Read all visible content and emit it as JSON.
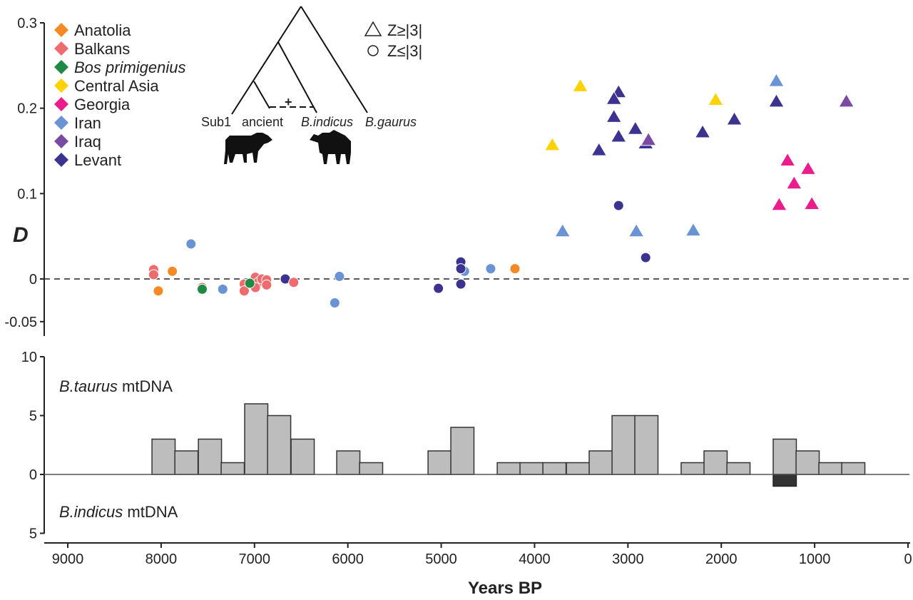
{
  "chart_data": [
    {
      "type": "scatter",
      "title": "",
      "xlabel": "Years BP",
      "ylabel": "D",
      "xlim": [
        9400,
        0
      ],
      "ylim": [
        -0.05,
        0.3
      ],
      "y_ticks": [
        {
          "value": 0.3,
          "label": "0.3"
        },
        {
          "value": 0.2,
          "label": "0.2"
        },
        {
          "value": 0.1,
          "label": "0.1"
        },
        {
          "value": 0,
          "label": "0"
        },
        {
          "value": -0.05,
          "label": "-0.05"
        }
      ],
      "reference_line": {
        "y": 0,
        "style": "dashed"
      },
      "legend": {
        "placement": "top-left",
        "groups": [
          {
            "name": "Anatolia",
            "color": "#f58a24",
            "italic": false
          },
          {
            "name": "Balkans",
            "color": "#ee6b6e",
            "italic": false
          },
          {
            "name": "Bos primigenius",
            "color": "#1e8a44",
            "italic": true
          },
          {
            "name": "Central Asia",
            "color": "#fcd200",
            "italic": false
          },
          {
            "name": "Georgia",
            "color": "#e91e8c",
            "italic": false
          },
          {
            "name": "Iran",
            "color": "#6a93d4",
            "italic": false
          },
          {
            "name": "Iraq",
            "color": "#7b4aa2",
            "italic": false
          },
          {
            "name": "Levant",
            "color": "#3c3390",
            "italic": false
          }
        ]
      },
      "shape_legend": {
        "placement": "top-center",
        "items": [
          {
            "shape": "triangle",
            "label": "Z≥|3|"
          },
          {
            "shape": "circle",
            "label": "Z≤|3|"
          }
        ]
      },
      "tree_inset": {
        "tips": [
          {
            "label": "Sub1",
            "italic": false
          },
          {
            "label": "ancient",
            "italic": false
          },
          {
            "label": "B.indicus",
            "italic": true
          },
          {
            "label": "B.gaurus",
            "italic": true
          }
        ],
        "gene_flow_label": "+",
        "silhouettes": [
          "taurine-cow",
          "zebu-cow"
        ]
      },
      "points": [
        {
          "group": "Balkans",
          "x": 8080,
          "y": 0.011,
          "shape": "circle"
        },
        {
          "group": "Balkans",
          "x": 8080,
          "y": 0.005,
          "shape": "circle"
        },
        {
          "group": "Anatolia",
          "x": 7880,
          "y": 0.009,
          "shape": "circle"
        },
        {
          "group": "Anatolia",
          "x": 8030,
          "y": -0.014,
          "shape": "circle"
        },
        {
          "group": "Iran",
          "x": 7680,
          "y": 0.041,
          "shape": "circle"
        },
        {
          "group": "Balkans",
          "x": 7560,
          "y": -0.01,
          "shape": "circle"
        },
        {
          "group": "Bos primigenius",
          "x": 7560,
          "y": -0.012,
          "shape": "circle"
        },
        {
          "group": "Iran",
          "x": 7340,
          "y": -0.012,
          "shape": "circle"
        },
        {
          "group": "Balkans",
          "x": 7110,
          "y": -0.006,
          "shape": "circle"
        },
        {
          "group": "Balkans",
          "x": 7110,
          "y": -0.014,
          "shape": "circle"
        },
        {
          "group": "Balkans",
          "x": 6990,
          "y": 0.002,
          "shape": "circle"
        },
        {
          "group": "Balkans",
          "x": 6960,
          "y": -0.004,
          "shape": "circle"
        },
        {
          "group": "Balkans",
          "x": 6990,
          "y": -0.01,
          "shape": "circle"
        },
        {
          "group": "Balkans",
          "x": 6920,
          "y": 0.0,
          "shape": "circle"
        },
        {
          "group": "Balkans",
          "x": 6870,
          "y": -0.001,
          "shape": "circle"
        },
        {
          "group": "Balkans",
          "x": 6870,
          "y": -0.007,
          "shape": "circle"
        },
        {
          "group": "Bos primigenius",
          "x": 7050,
          "y": -0.005,
          "shape": "circle"
        },
        {
          "group": "Levant",
          "x": 6670,
          "y": 0.0,
          "shape": "circle"
        },
        {
          "group": "Balkans",
          "x": 6580,
          "y": -0.004,
          "shape": "circle"
        },
        {
          "group": "Iran",
          "x": 6140,
          "y": -0.028,
          "shape": "circle"
        },
        {
          "group": "Iran",
          "x": 6090,
          "y": 0.003,
          "shape": "circle"
        },
        {
          "group": "Levant",
          "x": 5030,
          "y": -0.011,
          "shape": "circle"
        },
        {
          "group": "Levant",
          "x": 4790,
          "y": 0.02,
          "shape": "circle"
        },
        {
          "group": "Iran",
          "x": 4750,
          "y": 0.009,
          "shape": "circle"
        },
        {
          "group": "Levant",
          "x": 4790,
          "y": 0.012,
          "shape": "circle"
        },
        {
          "group": "Levant",
          "x": 4790,
          "y": -0.006,
          "shape": "circle"
        },
        {
          "group": "Iran",
          "x": 4470,
          "y": 0.012,
          "shape": "circle"
        },
        {
          "group": "Anatolia",
          "x": 4210,
          "y": 0.012,
          "shape": "circle"
        },
        {
          "group": "Levant",
          "x": 3100,
          "y": 0.086,
          "shape": "circle"
        },
        {
          "group": "Levant",
          "x": 2810,
          "y": 0.025,
          "shape": "circle"
        },
        {
          "group": "Iran",
          "x": 3700,
          "y": 0.057,
          "shape": "triangle"
        },
        {
          "group": "Iran",
          "x": 2910,
          "y": 0.057,
          "shape": "triangle"
        },
        {
          "group": "Iran",
          "x": 2300,
          "y": 0.058,
          "shape": "triangle"
        },
        {
          "group": "Iran",
          "x": 1410,
          "y": 0.233,
          "shape": "triangle"
        },
        {
          "group": "Central Asia",
          "x": 3810,
          "y": 0.158,
          "shape": "triangle"
        },
        {
          "group": "Central Asia",
          "x": 3510,
          "y": 0.227,
          "shape": "triangle"
        },
        {
          "group": "Central Asia",
          "x": 2060,
          "y": 0.211,
          "shape": "triangle"
        },
        {
          "group": "Levant",
          "x": 3100,
          "y": 0.22,
          "shape": "triangle"
        },
        {
          "group": "Levant",
          "x": 3150,
          "y": 0.212,
          "shape": "triangle"
        },
        {
          "group": "Levant",
          "x": 3150,
          "y": 0.191,
          "shape": "triangle"
        },
        {
          "group": "Levant",
          "x": 2920,
          "y": 0.177,
          "shape": "triangle"
        },
        {
          "group": "Levant",
          "x": 3100,
          "y": 0.168,
          "shape": "triangle"
        },
        {
          "group": "Levant",
          "x": 2810,
          "y": 0.16,
          "shape": "triangle"
        },
        {
          "group": "Levant",
          "x": 3310,
          "y": 0.152,
          "shape": "triangle"
        },
        {
          "group": "Levant",
          "x": 2200,
          "y": 0.173,
          "shape": "triangle"
        },
        {
          "group": "Levant",
          "x": 1860,
          "y": 0.188,
          "shape": "triangle"
        },
        {
          "group": "Levant",
          "x": 1410,
          "y": 0.209,
          "shape": "triangle"
        },
        {
          "group": "Iraq",
          "x": 2780,
          "y": 0.164,
          "shape": "triangle"
        },
        {
          "group": "Iraq",
          "x": 660,
          "y": 0.209,
          "shape": "triangle"
        },
        {
          "group": "Georgia",
          "x": 1290,
          "y": 0.14,
          "shape": "triangle"
        },
        {
          "group": "Georgia",
          "x": 1070,
          "y": 0.13,
          "shape": "triangle"
        },
        {
          "group": "Georgia",
          "x": 1220,
          "y": 0.113,
          "shape": "triangle"
        },
        {
          "group": "Georgia",
          "x": 1380,
          "y": 0.088,
          "shape": "triangle"
        },
        {
          "group": "Georgia",
          "x": 1030,
          "y": 0.089,
          "shape": "triangle"
        }
      ]
    },
    {
      "type": "bar",
      "title": "",
      "xlabel": "Years BP",
      "ylabel": "",
      "xlim": [
        9400,
        0
      ],
      "ylim": [
        -5,
        10
      ],
      "y_ticks": [
        {
          "value": 10,
          "label": "10"
        },
        {
          "value": 5,
          "label": "5"
        },
        {
          "value": 0,
          "label": "0"
        },
        {
          "value": -5,
          "label": "5"
        }
      ],
      "x_ticks": [
        "9000",
        "8000",
        "7000",
        "6000",
        "5000",
        "4000",
        "3000",
        "2000",
        "1000",
        "0"
      ],
      "x_tick_values": [
        9000,
        8000,
        7000,
        6000,
        5000,
        4000,
        3000,
        2000,
        1000,
        0
      ],
      "annotations": {
        "upper": {
          "italic": "B.taurus",
          "plain": " mtDNA"
        },
        "lower": {
          "italic": "B.indicus",
          "plain": " mtDNA"
        }
      },
      "bin_width_years": 248,
      "series": [
        {
          "name": "B.taurus mtDNA",
          "color": "#bdbdbd",
          "bins": [
            {
              "start": 8098,
              "count": 3
            },
            {
              "start": 7853,
              "count": 2
            },
            {
              "start": 7601,
              "count": 3
            },
            {
              "start": 7357,
              "count": 1
            },
            {
              "start": 7105,
              "count": 6
            },
            {
              "start": 6860,
              "count": 5
            },
            {
              "start": 6608,
              "count": 3
            },
            {
              "start": 6119,
              "count": 2
            },
            {
              "start": 5875,
              "count": 1
            },
            {
              "start": 5141,
              "count": 2
            },
            {
              "start": 4897,
              "count": 4
            },
            {
              "start": 4400,
              "count": 1
            },
            {
              "start": 4156,
              "count": 1
            },
            {
              "start": 3911,
              "count": 1
            },
            {
              "start": 3659,
              "count": 1
            },
            {
              "start": 3415,
              "count": 2
            },
            {
              "start": 3170,
              "count": 5
            },
            {
              "start": 2926,
              "count": 5
            },
            {
              "start": 2430,
              "count": 1
            },
            {
              "start": 2185,
              "count": 2
            },
            {
              "start": 1940,
              "count": 1
            },
            {
              "start": 1444,
              "count": 3
            },
            {
              "start": 1199,
              "count": 2
            },
            {
              "start": 955,
              "count": 1
            },
            {
              "start": 710,
              "count": 1
            }
          ]
        },
        {
          "name": "B.indicus mtDNA",
          "color": "#333333",
          "bins": [
            {
              "start": 1444,
              "count": 1
            }
          ]
        }
      ]
    }
  ]
}
